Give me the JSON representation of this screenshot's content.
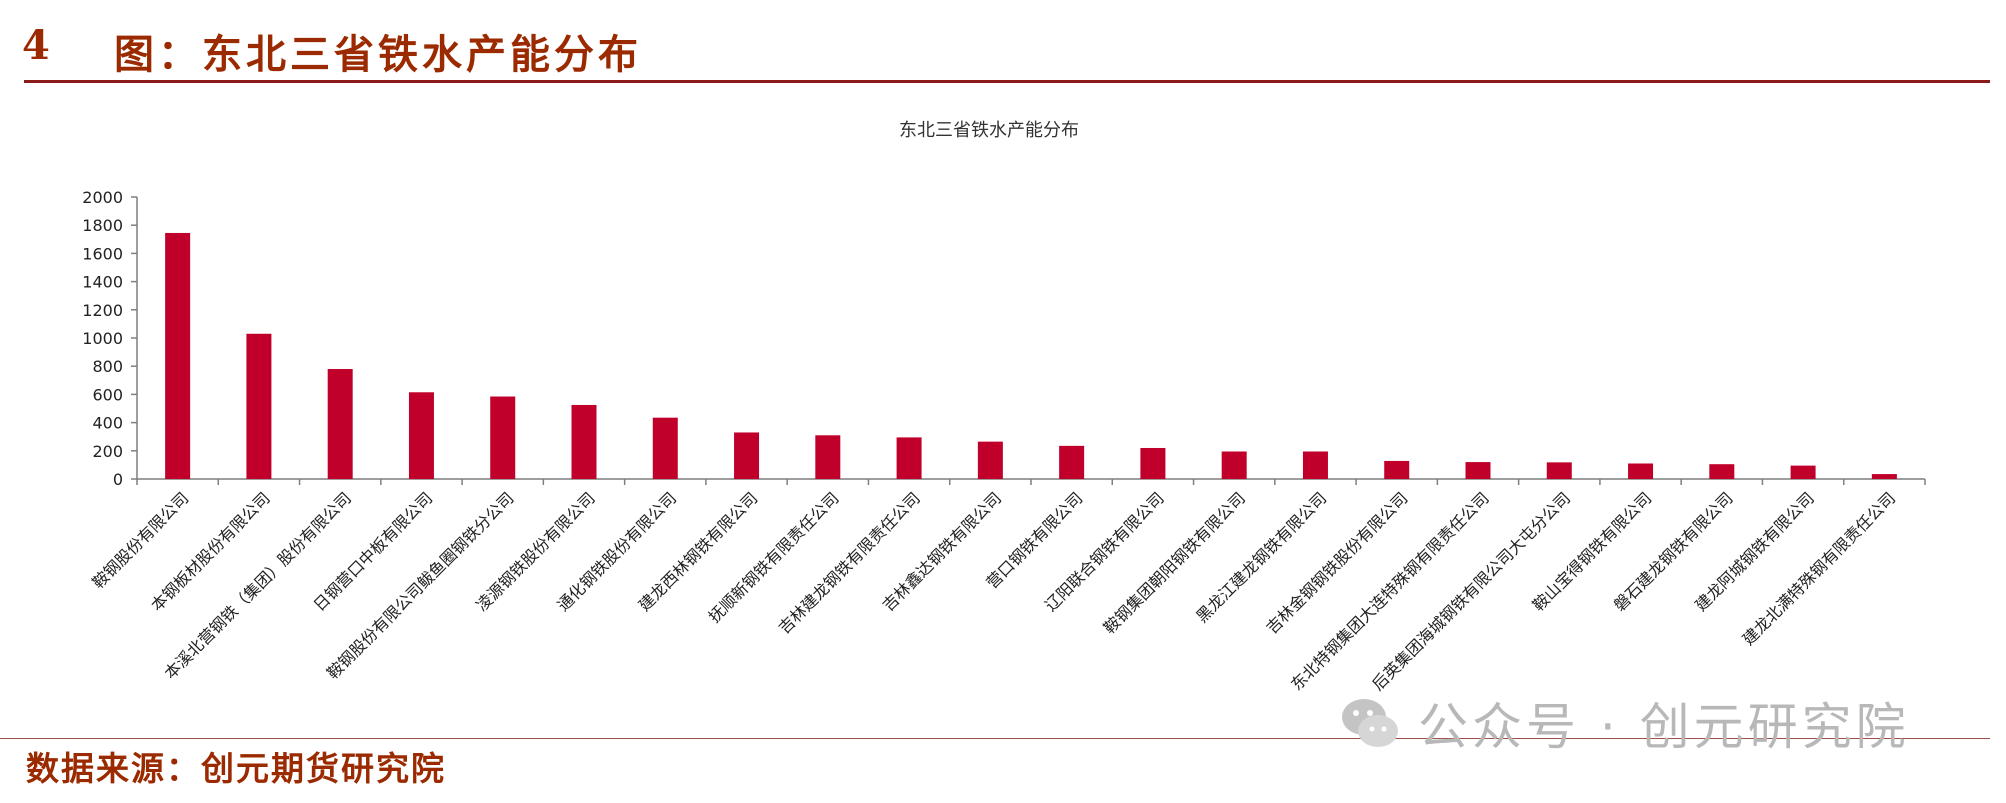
{
  "header": {
    "figure_number": "4",
    "figure_title": "图：东北三省铁水产能分布"
  },
  "footer": {
    "source": "数据来源：创元期货研究院"
  },
  "watermark": {
    "text": "公众号 · 创元研究院",
    "icon": "wechat-icon"
  },
  "colors": {
    "bar": "#c0002b",
    "accent": "#9b2a00",
    "rule": "#8b1a1a"
  },
  "chart_data": {
    "type": "bar",
    "title": "东北三省铁水产能分布",
    "xlabel": "",
    "ylabel": "",
    "ylim": [
      0,
      2000
    ],
    "yticks": [
      0,
      200,
      400,
      600,
      800,
      1000,
      1200,
      1400,
      1600,
      1800,
      2000
    ],
    "grid": false,
    "legend": "none",
    "categories": [
      "鞍钢股份有限公司",
      "本钢板材股份有限公司",
      "本溪北营钢铁（集团）股份有限公司",
      "日钢营口中板有限公司",
      "鞍钢股份有限公司鲅鱼圈钢铁分公司",
      "凌源钢铁股份有限公司",
      "通化钢铁股份有限公司",
      "建龙西林钢铁有限公司",
      "抚顺新钢铁有限责任公司",
      "吉林建龙钢铁有限责任公司",
      "吉林鑫达钢铁有限公司",
      "营口钢铁有限公司",
      "辽阳联合钢铁有限公司",
      "鞍钢集团朝阳钢铁有限公司",
      "黑龙江建龙钢铁有限公司",
      "吉林金钢钢铁股份有限公司",
      "东北特钢集团大连特殊钢有限责任公司",
      "后英集团海城钢铁有限公司大屯分公司",
      "鞍山宝得钢铁有限公司",
      "磐石建龙钢铁有限公司",
      "建龙阿城钢铁有限公司",
      "建龙北满特殊钢有限责任公司"
    ],
    "values": [
      1745,
      1030,
      780,
      615,
      585,
      525,
      435,
      330,
      310,
      295,
      265,
      235,
      220,
      195,
      195,
      128,
      120,
      118,
      110,
      105,
      95,
      35
    ]
  }
}
